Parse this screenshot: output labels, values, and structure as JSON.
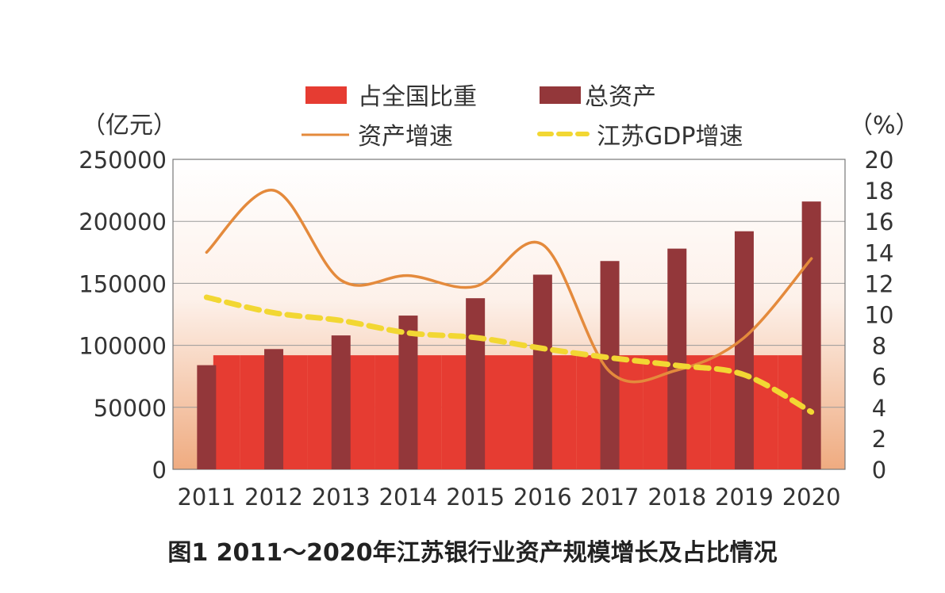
{
  "colors": {
    "share": "#e63c32",
    "assets": "#93373a",
    "asset_growth": "#e48a3c",
    "gdp_growth": "#f2d733",
    "grid": "#9a9a9a",
    "bg_top": "#ffffff",
    "bg_bottom": "#efab80"
  },
  "caption": "图1  2011～2020年江苏银行业资产规模增长及占比情况",
  "chart_data": {
    "type": "bar",
    "categories": [
      "2011",
      "2012",
      "2013",
      "2014",
      "2015",
      "2016",
      "2017",
      "2018",
      "2019",
      "2020"
    ],
    "left_axis": {
      "unit_label": "（亿元）",
      "range": [
        0,
        250000
      ],
      "ticks": [
        "0",
        "50000",
        "100000",
        "150000",
        "200000",
        "250000"
      ]
    },
    "right_axis": {
      "unit_label": "（%）",
      "range": [
        0,
        20
      ],
      "ticks": [
        "0",
        "2",
        "4",
        "6",
        "8",
        "10",
        "12",
        "14",
        "16",
        "18",
        "20"
      ]
    },
    "share_area": {
      "name": "占全国比重",
      "values": [
        92000,
        92000,
        92000,
        92000,
        92000,
        92000,
        92000,
        92000,
        92000,
        92000
      ]
    },
    "series": [
      {
        "name": "总资产",
        "type": "bar",
        "axis": "left",
        "values": [
          84000,
          97000,
          108000,
          124000,
          138000,
          157000,
          168000,
          178000,
          192000,
          216000
        ]
      },
      {
        "name": "资产增速",
        "type": "line",
        "axis": "right",
        "style": "solid",
        "values": [
          14.0,
          18.0,
          12.2,
          12.5,
          11.8,
          14.5,
          6.3,
          6.4,
          8.5,
          13.6
        ]
      },
      {
        "name": "江苏GDP增速",
        "type": "line",
        "axis": "right",
        "style": "dashed",
        "values": [
          11.1,
          10.1,
          9.6,
          8.8,
          8.5,
          7.8,
          7.2,
          6.7,
          6.1,
          3.7
        ]
      }
    ],
    "legend": [
      "占全国比重",
      "总资产",
      "资产增速",
      "江苏GDP增速"
    ],
    "legend_position": "top",
    "grid": true
  }
}
